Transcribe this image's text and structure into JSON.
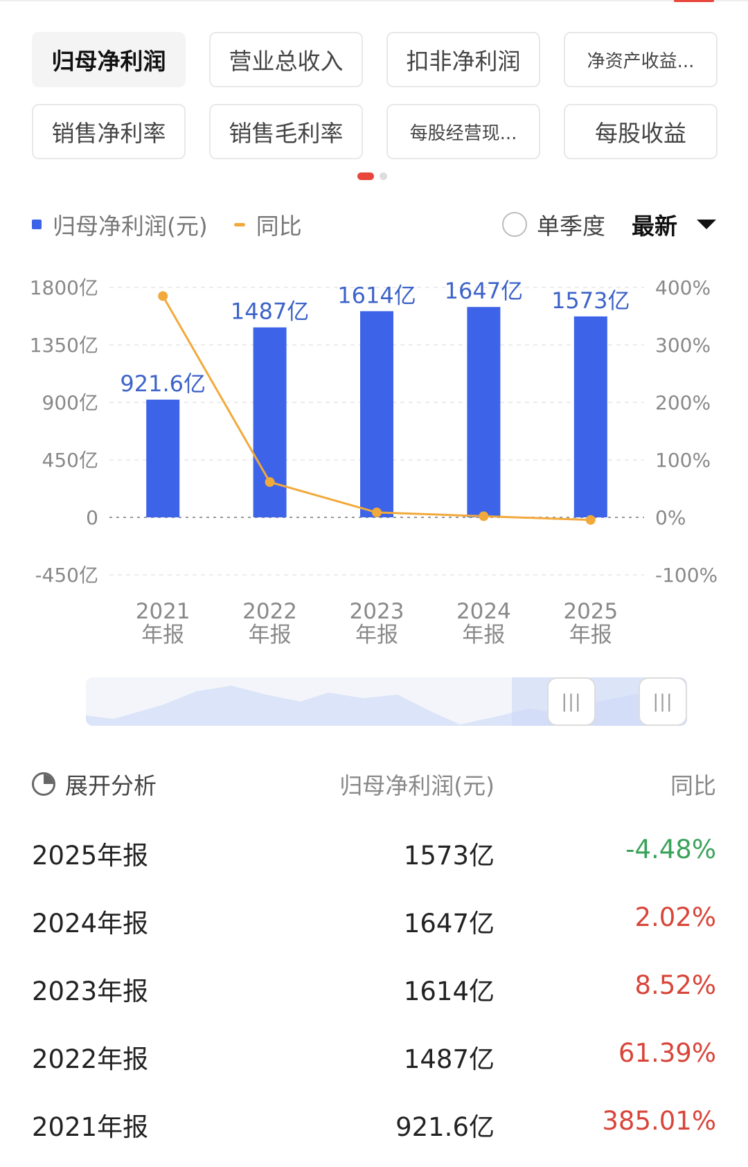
{
  "tabs": [
    {
      "label": "归母净利润",
      "active": true
    },
    {
      "label": "营业总收入"
    },
    {
      "label": "扣非净利润"
    },
    {
      "label": "净资产收益...",
      "small": true
    },
    {
      "label": "销售净利率"
    },
    {
      "label": "销售毛利率"
    },
    {
      "label": "每股经营现...",
      "small": true
    },
    {
      "label": "每股收益"
    }
  ],
  "legend": {
    "bar_label": "归母净利润(元)",
    "line_label": "同比"
  },
  "controls": {
    "quarter_label": "单季度",
    "latest_label": "最新"
  },
  "chart_data": {
    "type": "bar",
    "categories": [
      "2021年报",
      "2022年报",
      "2023年报",
      "2024年报",
      "2025年报"
    ],
    "x_labels": [
      [
        "2021",
        "年报"
      ],
      [
        "2022",
        "年报"
      ],
      [
        "2023",
        "年报"
      ],
      [
        "2024",
        "年报"
      ],
      [
        "2025",
        "年报"
      ]
    ],
    "series": [
      {
        "name": "归母净利润(元)",
        "type": "bar",
        "values": [
          921.6,
          1487,
          1614,
          1647,
          1573
        ],
        "labels": [
          "921.6亿",
          "1487亿",
          "1614亿",
          "1647亿",
          "1573亿"
        ],
        "color": "#3d63e8"
      },
      {
        "name": "同比",
        "type": "line",
        "values": [
          385.01,
          61.39,
          8.52,
          2.02,
          -4.48
        ],
        "color": "#f2a93b"
      }
    ],
    "y_left": {
      "range": [
        -450,
        1800
      ],
      "ticks": [
        1800,
        1350,
        900,
        450,
        0,
        -450
      ],
      "tick_labels": [
        "1800亿",
        "1350亿",
        "900亿",
        "450亿",
        "0",
        "-450亿"
      ]
    },
    "y_right": {
      "range": [
        -100,
        400
      ],
      "ticks": [
        400,
        300,
        200,
        100,
        0,
        -100
      ],
      "tick_labels": [
        "400%",
        "300%",
        "200%",
        "100%",
        "0%",
        "-100%"
      ]
    },
    "grid": true
  },
  "table": {
    "header": {
      "expand_label": "展开分析",
      "value_label": "归母净利润(元)",
      "yoy_label": "同比"
    },
    "rows": [
      {
        "period": "2025年报",
        "value": "1573亿",
        "yoy": "-4.48%",
        "trend": "neg"
      },
      {
        "period": "2024年报",
        "value": "1647亿",
        "yoy": "2.02%",
        "trend": "pos"
      },
      {
        "period": "2023年报",
        "value": "1614亿",
        "yoy": "8.52%",
        "trend": "pos"
      },
      {
        "period": "2022年报",
        "value": "1487亿",
        "yoy": "61.39%",
        "trend": "pos"
      },
      {
        "period": "2021年报",
        "value": "921.6亿",
        "yoy": "385.01%",
        "trend": "pos"
      }
    ]
  },
  "colors": {
    "accent": "#e8463a",
    "bar": "#3d63e8",
    "line": "#f2a93b",
    "negative": "#3aa35a",
    "positive": "#d8453a"
  }
}
